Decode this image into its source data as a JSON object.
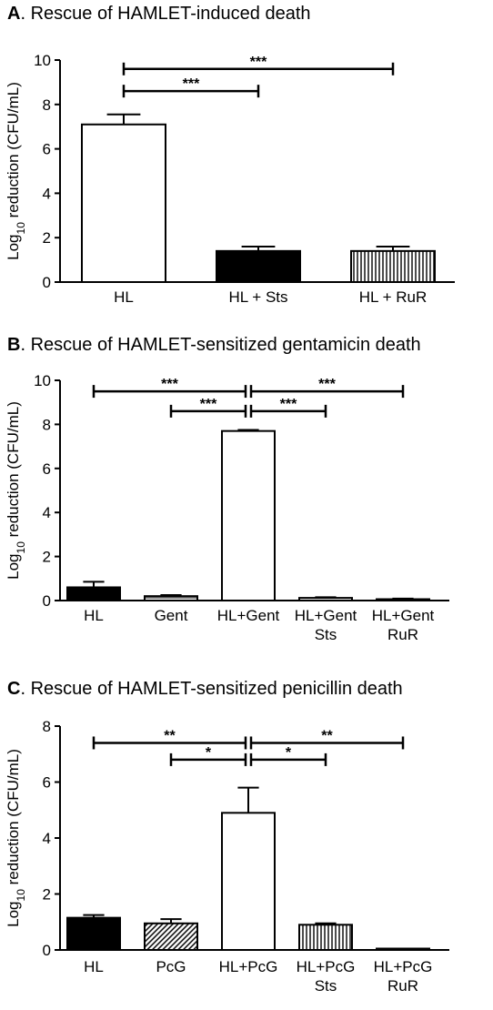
{
  "chart_data": [
    {
      "type": "bar",
      "panel_letter": "A",
      "title": "Rescue of HAMLET-induced death",
      "ylabel_main": "Log",
      "ylabel_sub": "10",
      "ylabel_rest": " reduction (CFU/mL)",
      "ylim": [
        0,
        10
      ],
      "yticks": [
        0,
        2,
        4,
        6,
        8,
        10
      ],
      "categories": [
        [
          "HL"
        ],
        [
          "HL + Sts"
        ],
        [
          "HL + RuR"
        ]
      ],
      "values": [
        7.1,
        1.4,
        1.4
      ],
      "errors": [
        0.45,
        0.2,
        0.2
      ],
      "fills": [
        "white",
        "black",
        "vstripe"
      ],
      "brackets": [
        {
          "from": 0,
          "to": 1,
          "y": 8.6,
          "label": "***"
        },
        {
          "from": 0,
          "to": 2,
          "y": 9.6,
          "label": "***"
        }
      ]
    },
    {
      "type": "bar",
      "panel_letter": "B",
      "title": "Rescue of HAMLET-sensitized gentamicin death",
      "ylabel_main": "Log",
      "ylabel_sub": "10",
      "ylabel_rest": " reduction (CFU/mL)",
      "ylim": [
        0,
        10
      ],
      "yticks": [
        0,
        2,
        4,
        6,
        8,
        10
      ],
      "categories": [
        [
          "HL"
        ],
        [
          "Gent"
        ],
        [
          "HL+Gent"
        ],
        [
          "HL+Gent",
          "Sts"
        ],
        [
          "HL+Gent",
          "RuR"
        ]
      ],
      "values": [
        0.6,
        0.2,
        7.7,
        0.12,
        0.05
      ],
      "errors": [
        0.25,
        0.05,
        0.05,
        0.03,
        0.04
      ],
      "fills": [
        "black",
        "hstripe",
        "white",
        "hstripe",
        "black"
      ],
      "brackets": [
        {
          "from": 0,
          "to": 2,
          "y": 9.5,
          "label": "***"
        },
        {
          "from": 1,
          "to": 2,
          "y": 8.6,
          "label": "***"
        },
        {
          "from": 2,
          "to": 4,
          "y": 9.5,
          "label": "***"
        },
        {
          "from": 2,
          "to": 3,
          "y": 8.6,
          "label": "***"
        }
      ]
    },
    {
      "type": "bar",
      "panel_letter": "C",
      "title": "Rescue of HAMLET-sensitized penicillin death",
      "ylabel_main": "Log",
      "ylabel_sub": "10",
      "ylabel_rest": " reduction (CFU/mL)",
      "ylim": [
        0,
        8
      ],
      "yticks": [
        0,
        2,
        4,
        6,
        8
      ],
      "categories": [
        [
          "HL"
        ],
        [
          "PcG"
        ],
        [
          "HL+PcG"
        ],
        [
          "HL+PcG",
          "Sts"
        ],
        [
          "HL+PcG",
          "RuR"
        ]
      ],
      "values": [
        1.15,
        0.95,
        4.9,
        0.9,
        0.02
      ],
      "errors": [
        0.1,
        0.15,
        0.9,
        0.05,
        0.0
      ],
      "fills": [
        "black",
        "diag",
        "white",
        "vstripe",
        "black"
      ],
      "brackets": [
        {
          "from": 0,
          "to": 2,
          "y": 7.4,
          "label": "**"
        },
        {
          "from": 1,
          "to": 2,
          "y": 6.8,
          "label": "*"
        },
        {
          "from": 2,
          "to": 4,
          "y": 7.4,
          "label": "**"
        },
        {
          "from": 2,
          "to": 3,
          "y": 6.8,
          "label": "*"
        }
      ]
    }
  ]
}
